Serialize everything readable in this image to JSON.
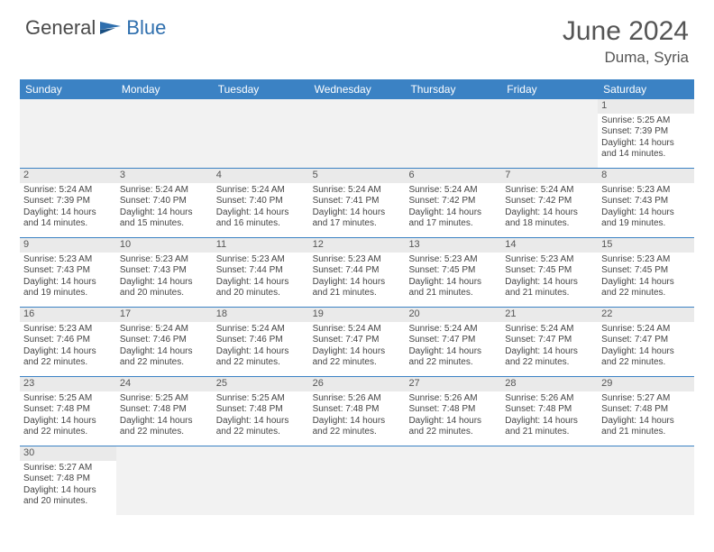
{
  "logo": {
    "text1": "General",
    "text2": "Blue"
  },
  "title": "June 2024",
  "location": "Duma, Syria",
  "colors": {
    "header_bg": "#3b82c4",
    "row_border": "#3b82c4",
    "daybar_bg": "#eaeaea",
    "empty_bg": "#f2f2f2",
    "logo_blue": "#2f6fae",
    "text_gray": "#555"
  },
  "weekdays": [
    "Sunday",
    "Monday",
    "Tuesday",
    "Wednesday",
    "Thursday",
    "Friday",
    "Saturday"
  ],
  "weeks": [
    [
      null,
      null,
      null,
      null,
      null,
      null,
      {
        "n": "1",
        "sunrise": "5:25 AM",
        "sunset": "7:39 PM",
        "dayh": "14",
        "daym": "14"
      }
    ],
    [
      {
        "n": "2",
        "sunrise": "5:24 AM",
        "sunset": "7:39 PM",
        "dayh": "14",
        "daym": "14"
      },
      {
        "n": "3",
        "sunrise": "5:24 AM",
        "sunset": "7:40 PM",
        "dayh": "14",
        "daym": "15"
      },
      {
        "n": "4",
        "sunrise": "5:24 AM",
        "sunset": "7:40 PM",
        "dayh": "14",
        "daym": "16"
      },
      {
        "n": "5",
        "sunrise": "5:24 AM",
        "sunset": "7:41 PM",
        "dayh": "14",
        "daym": "17"
      },
      {
        "n": "6",
        "sunrise": "5:24 AM",
        "sunset": "7:42 PM",
        "dayh": "14",
        "daym": "17"
      },
      {
        "n": "7",
        "sunrise": "5:24 AM",
        "sunset": "7:42 PM",
        "dayh": "14",
        "daym": "18"
      },
      {
        "n": "8",
        "sunrise": "5:23 AM",
        "sunset": "7:43 PM",
        "dayh": "14",
        "daym": "19"
      }
    ],
    [
      {
        "n": "9",
        "sunrise": "5:23 AM",
        "sunset": "7:43 PM",
        "dayh": "14",
        "daym": "19"
      },
      {
        "n": "10",
        "sunrise": "5:23 AM",
        "sunset": "7:43 PM",
        "dayh": "14",
        "daym": "20"
      },
      {
        "n": "11",
        "sunrise": "5:23 AM",
        "sunset": "7:44 PM",
        "dayh": "14",
        "daym": "20"
      },
      {
        "n": "12",
        "sunrise": "5:23 AM",
        "sunset": "7:44 PM",
        "dayh": "14",
        "daym": "21"
      },
      {
        "n": "13",
        "sunrise": "5:23 AM",
        "sunset": "7:45 PM",
        "dayh": "14",
        "daym": "21"
      },
      {
        "n": "14",
        "sunrise": "5:23 AM",
        "sunset": "7:45 PM",
        "dayh": "14",
        "daym": "21"
      },
      {
        "n": "15",
        "sunrise": "5:23 AM",
        "sunset": "7:45 PM",
        "dayh": "14",
        "daym": "22"
      }
    ],
    [
      {
        "n": "16",
        "sunrise": "5:23 AM",
        "sunset": "7:46 PM",
        "dayh": "14",
        "daym": "22"
      },
      {
        "n": "17",
        "sunrise": "5:24 AM",
        "sunset": "7:46 PM",
        "dayh": "14",
        "daym": "22"
      },
      {
        "n": "18",
        "sunrise": "5:24 AM",
        "sunset": "7:46 PM",
        "dayh": "14",
        "daym": "22"
      },
      {
        "n": "19",
        "sunrise": "5:24 AM",
        "sunset": "7:47 PM",
        "dayh": "14",
        "daym": "22"
      },
      {
        "n": "20",
        "sunrise": "5:24 AM",
        "sunset": "7:47 PM",
        "dayh": "14",
        "daym": "22"
      },
      {
        "n": "21",
        "sunrise": "5:24 AM",
        "sunset": "7:47 PM",
        "dayh": "14",
        "daym": "22"
      },
      {
        "n": "22",
        "sunrise": "5:24 AM",
        "sunset": "7:47 PM",
        "dayh": "14",
        "daym": "22"
      }
    ],
    [
      {
        "n": "23",
        "sunrise": "5:25 AM",
        "sunset": "7:48 PM",
        "dayh": "14",
        "daym": "22"
      },
      {
        "n": "24",
        "sunrise": "5:25 AM",
        "sunset": "7:48 PM",
        "dayh": "14",
        "daym": "22"
      },
      {
        "n": "25",
        "sunrise": "5:25 AM",
        "sunset": "7:48 PM",
        "dayh": "14",
        "daym": "22"
      },
      {
        "n": "26",
        "sunrise": "5:26 AM",
        "sunset": "7:48 PM",
        "dayh": "14",
        "daym": "22"
      },
      {
        "n": "27",
        "sunrise": "5:26 AM",
        "sunset": "7:48 PM",
        "dayh": "14",
        "daym": "22"
      },
      {
        "n": "28",
        "sunrise": "5:26 AM",
        "sunset": "7:48 PM",
        "dayh": "14",
        "daym": "21"
      },
      {
        "n": "29",
        "sunrise": "5:27 AM",
        "sunset": "7:48 PM",
        "dayh": "14",
        "daym": "21"
      }
    ],
    [
      {
        "n": "30",
        "sunrise": "5:27 AM",
        "sunset": "7:48 PM",
        "dayh": "14",
        "daym": "20"
      },
      null,
      null,
      null,
      null,
      null,
      null
    ]
  ],
  "labels": {
    "sunrise": "Sunrise:",
    "sunset": "Sunset:",
    "daylight": "Daylight:",
    "hours": "hours",
    "and": "and",
    "minutes": "minutes."
  }
}
